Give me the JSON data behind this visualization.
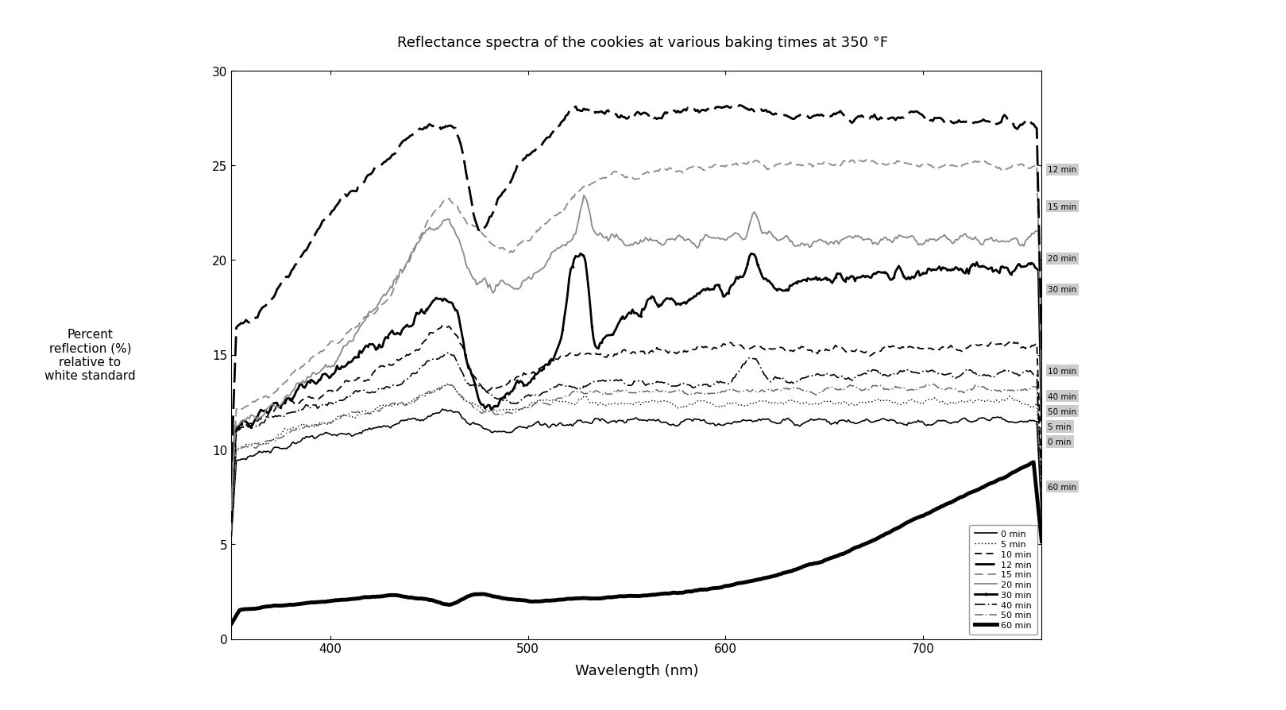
{
  "title": "Reflectance spectra of the cookies at various baking times at 350 °F",
  "xlabel": "Wavelength (nm)",
  "ylabel": "Percent\nreflection (%)\nrelative to\nwhite standard",
  "xlim": [
    350,
    760
  ],
  "ylim": [
    0,
    30
  ],
  "xticks": [
    400,
    500,
    600,
    700
  ],
  "yticks": [
    0,
    5,
    10,
    15,
    20,
    25,
    30
  ],
  "background_color": "#ffffff",
  "fig_width": 16.19,
  "fig_height": 8.95,
  "dpi": 100,
  "right_labels": [
    {
      "label": "12 min",
      "y_approx": 27.5
    },
    {
      "label": "15 min",
      "y_approx": 25.0
    },
    {
      "label": "20 min",
      "y_approx": 21.0
    },
    {
      "label": "30 min",
      "y_approx": 19.5
    },
    {
      "label": "10 min",
      "y_approx": 15.5
    },
    {
      "label": "40 min",
      "y_approx": 14.5
    },
    {
      "label": "50 min",
      "y_approx": 13.2
    },
    {
      "label": "5 min",
      "y_approx": 12.5
    },
    {
      "label": "0 min",
      "y_approx": 11.5
    },
    {
      "label": "60 min",
      "y_approx": 10.0
    }
  ],
  "legend_entries": [
    {
      "label": "0 min",
      "color": "#000000",
      "lw": 1.2,
      "ls": "solid",
      "marker": "none",
      "dashes": []
    },
    {
      "label": "5 min",
      "color": "#000000",
      "lw": 1.0,
      "ls": "dotted",
      "marker": "none",
      "dashes": [
        1,
        2
      ]
    },
    {
      "label": "10 min",
      "color": "#000000",
      "lw": 1.3,
      "ls": "dashed",
      "marker": "none",
      "dashes": [
        5,
        3
      ]
    },
    {
      "label": "12 min",
      "color": "#000000",
      "lw": 2.0,
      "ls": "dashed",
      "marker": "none",
      "dashes": [
        9,
        3
      ]
    },
    {
      "label": "15 min",
      "color": "#888888",
      "lw": 1.3,
      "ls": "dashed",
      "marker": "none",
      "dashes": [
        6,
        3
      ]
    },
    {
      "label": "20 min",
      "color": "#888888",
      "lw": 1.3,
      "ls": "solid",
      "marker": "none",
      "dashes": []
    },
    {
      "label": "30 min",
      "color": "#000000",
      "lw": 2.0,
      "ls": "solid",
      "marker": "circle",
      "dashes": []
    },
    {
      "label": "40 min",
      "color": "#000000",
      "lw": 1.2,
      "ls": "dashdot",
      "marker": "none",
      "dashes": [
        8,
        2,
        1,
        2
      ]
    },
    {
      "label": "50 min",
      "color": "#666666",
      "lw": 1.1,
      "ls": "dashdot",
      "marker": "none",
      "dashes": [
        7,
        2,
        1,
        2
      ]
    },
    {
      "label": "60 min",
      "color": "#000000",
      "lw": 3.5,
      "ls": "solid",
      "marker": "none",
      "dashes": []
    }
  ]
}
